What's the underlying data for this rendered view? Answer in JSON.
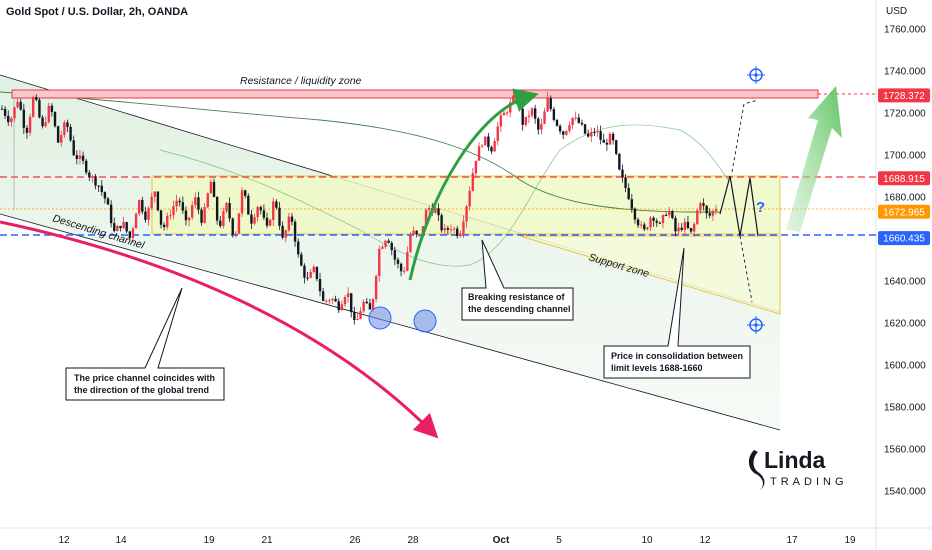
{
  "title": "Gold Spot / U.S. Dollar, 2h, OANDA",
  "currency_label": "USD",
  "chart_data": {
    "type": "candlestick",
    "symbol": "Gold Spot / U.S. Dollar",
    "interval": "2h",
    "source": "OANDA",
    "ylim": [
      1530,
      1768
    ],
    "y_ticks": [
      "1760.000",
      "1740.000",
      "1720.000",
      "1700.000",
      "1680.000",
      "1660.000",
      "1640.000",
      "1620.000",
      "1600.000",
      "1580.000",
      "1560.000",
      "1540.000"
    ],
    "x_ticks": [
      {
        "label": "12",
        "bold": false
      },
      {
        "label": "14",
        "bold": false
      },
      {
        "label": "19",
        "bold": false
      },
      {
        "label": "21",
        "bold": false
      },
      {
        "label": "26",
        "bold": false
      },
      {
        "label": "28",
        "bold": false
      },
      {
        "label": "Oct",
        "bold": true
      },
      {
        "label": "5",
        "bold": false
      },
      {
        "label": "10",
        "bold": false
      },
      {
        "label": "12",
        "bold": false
      },
      {
        "label": "17",
        "bold": false
      },
      {
        "label": "19",
        "bold": false
      }
    ],
    "price_labels": [
      {
        "value": "1728.372",
        "price": 1728.372,
        "color": "#f23645"
      },
      {
        "value": "1688.915",
        "price": 1688.915,
        "color": "#f23645"
      },
      {
        "value": "1672.965",
        "price": 1672.965,
        "color": "#ff9800"
      },
      {
        "value": "1660.435",
        "price": 1660.435,
        "color": "#2962ff"
      }
    ],
    "levels": {
      "resistance": 1728.372,
      "upper_limit": 1688.915,
      "current": 1672.965,
      "support": 1660.435
    },
    "candle_path": [
      1722,
      1716,
      1727,
      1710,
      1729,
      1712,
      1724,
      1706,
      1716,
      1700,
      1697,
      1690,
      1686,
      1678,
      1663,
      1668,
      1660,
      1679,
      1670,
      1684,
      1664,
      1673,
      1680,
      1666,
      1680,
      1668,
      1688,
      1665,
      1676,
      1660,
      1684,
      1668,
      1677,
      1664,
      1680,
      1659,
      1672,
      1650,
      1640,
      1646,
      1630,
      1632,
      1628,
      1636,
      1618,
      1630,
      1625,
      1655,
      1662,
      1650,
      1643,
      1664,
      1660,
      1675,
      1674,
      1663,
      1666,
      1662,
      1678,
      1698,
      1708,
      1703,
      1716,
      1722,
      1728,
      1714,
      1722,
      1710,
      1726,
      1716,
      1710,
      1718,
      1715,
      1708,
      1712,
      1705,
      1709,
      1691,
      1682,
      1670,
      1663,
      1672,
      1666,
      1675,
      1663,
      1667,
      1662,
      1679,
      1670,
      1675
    ]
  },
  "annotations": {
    "resistance_zone": "Resistance / liquidity zone",
    "descending_channel": "Descending channel",
    "support_zone": "Support zone",
    "note_trend": [
      "The price channel coincides with",
      "the direction of the global trend"
    ],
    "note_breaking": [
      "Breaking resistance of",
      "the descending channel"
    ],
    "note_consolidation": [
      "Price in consolidation between",
      "limit levels 1688-1660"
    ],
    "question_mark": "?"
  },
  "logo": {
    "line1": "Linda",
    "line2": "TRADING"
  },
  "colors": {
    "resistance": "#f23645",
    "support": "#2962ff",
    "current": "#ff9800",
    "bull": "#f23645",
    "bear": "#131722",
    "arrow_green": "#2ea043",
    "arrow_pink": "#e91e63",
    "zone_fill": "#e9f5b8"
  }
}
